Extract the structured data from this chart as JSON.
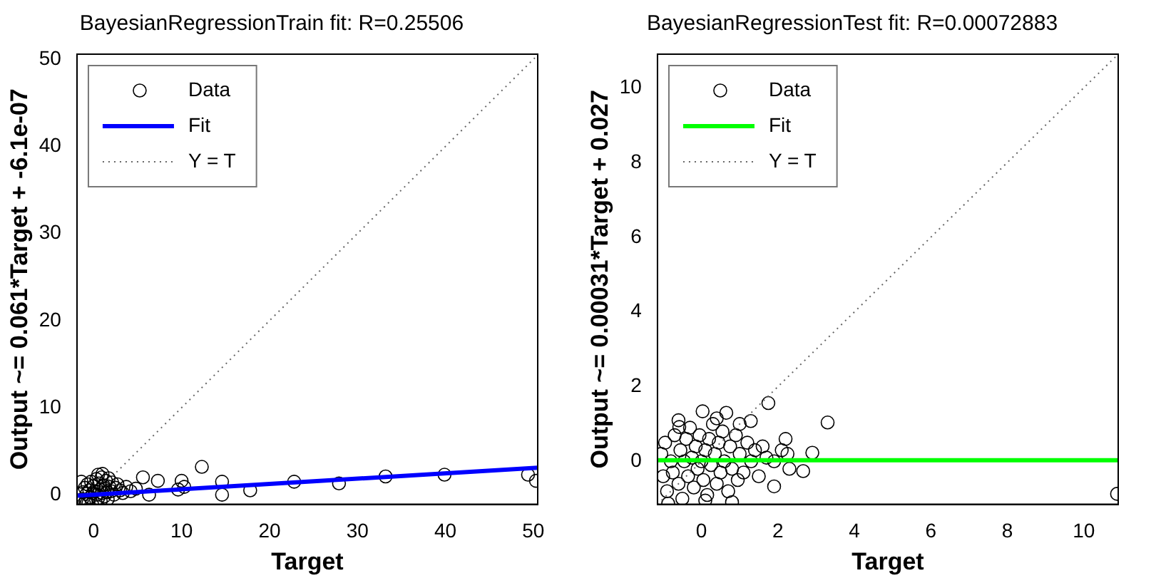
{
  "chart_data": [
    {
      "type": "scatter",
      "title": "BayesianRegressionTrain fit: R=0.25506",
      "xlabel": "Target",
      "ylabel": "Output ~= 0.061*Target + -6.1e-07",
      "xlim": [
        -1.9,
        50.5
      ],
      "ylim": [
        -1.1,
        50.6
      ],
      "xticks": [
        0,
        10,
        20,
        30,
        40,
        50
      ],
      "yticks": [
        0,
        10,
        20,
        30,
        40,
        50
      ],
      "grid": false,
      "legend": "top left",
      "series": [
        {
          "name": "Data",
          "marker": "circle",
          "color": "#000000",
          "x": [
            -1.3,
            -1.2,
            -1.1,
            -1,
            -0.9,
            -0.8,
            -0.7,
            -0.6,
            -0.5,
            -0.4,
            -0.3,
            -0.2,
            -0.1,
            0,
            0.1,
            0.3,
            0.4,
            0.5,
            0.6,
            0.7,
            0.8,
            0.9,
            1,
            1.1,
            1.2,
            1.3,
            1.4,
            1.5,
            1.6,
            1.7,
            1.8,
            2,
            2.1,
            2.3,
            2.5,
            2.7,
            3,
            3.3,
            3.7,
            4.2,
            4.8,
            -0.8,
            0.5,
            -1.4,
            1,
            5.6,
            6.3,
            7.3,
            10,
            10.3,
            9.6,
            12.3,
            14.6,
            14.6,
            17.8,
            22.8,
            27.9,
            33.2,
            39.9,
            49.4,
            50.3
          ],
          "values": [
            -0.5,
            0.3,
            -1,
            0.8,
            -0.8,
            0.1,
            1.2,
            -1,
            0.5,
            -0.3,
            1.5,
            -1,
            0.2,
            1,
            0.4,
            1.8,
            0,
            -0.4,
            1.3,
            0.6,
            -0.7,
            2,
            0.2,
            1.1,
            -0.2,
            0.7,
            1.6,
            0.3,
            -0.5,
            1.9,
            0.9,
            0.4,
            1.4,
            0,
            0.8,
            1.2,
            0.5,
            0.2,
            0.9,
            0.4,
            0.7,
            -1,
            2.3,
            1.5,
            2.4,
            2,
            0,
            1.6,
            1.6,
            0.9,
            0.6,
            3.2,
            1.5,
            0,
            0.5,
            1.5,
            1.3,
            2.1,
            2.3,
            2.3,
            1.6
          ]
        },
        {
          "name": "Fit",
          "type": "line",
          "marker": "none",
          "line_style": "solid",
          "color": "#0000ff",
          "x": [
            -1.9,
            50.5
          ],
          "values": [
            -0.1,
            3.1
          ]
        },
        {
          "name": "Y = T",
          "type": "line",
          "marker": "none",
          "line_style": "dotted",
          "color": "#666666",
          "x": [
            -1.1,
            50.5
          ],
          "values": [
            -1.1,
            50.5
          ]
        }
      ]
    },
    {
      "type": "scatter",
      "title": "BayesianRegressionTest fit: R=0.00072883",
      "xlabel": "Target",
      "ylabel": "Output ~= 0.00031*Target + 0.027",
      "xlim": [
        -1.15,
        10.9
      ],
      "ylim": [
        -1.15,
        10.9
      ],
      "xticks": [
        0,
        2,
        4,
        6,
        8,
        10
      ],
      "yticks": [
        0,
        2,
        4,
        6,
        8,
        10
      ],
      "grid": false,
      "legend": "top left",
      "series": [
        {
          "name": "Data",
          "marker": "circle",
          "color": "#000000",
          "x": [
            -1.05,
            -1,
            -0.95,
            -0.9,
            -0.8,
            -0.75,
            -0.7,
            -0.6,
            -0.55,
            -0.5,
            -0.45,
            -0.4,
            -0.35,
            -0.3,
            -0.25,
            -0.2,
            -0.15,
            -0.1,
            -0.05,
            0,
            0.05,
            0.1,
            0.15,
            0.2,
            0.25,
            0.3,
            0.35,
            0.4,
            0.45,
            0.5,
            0.55,
            0.6,
            0.7,
            0.75,
            0.8,
            0.9,
            0.95,
            1,
            1.1,
            1.2,
            1.3,
            1.4,
            1.5,
            1.6,
            1.7,
            0.1,
            -0.6,
            0.4,
            1.9,
            2.1,
            2.3,
            2.25,
            1.75,
            3.3,
            2.9,
            2.2,
            2.66,
            1.9,
            10.87,
            -0.87,
            0.8,
            0.03,
            0.65,
            -0.58,
            1,
            1.29
          ],
          "values": [
            0.2,
            -0.4,
            0.5,
            -0.8,
            0,
            -0.3,
            0.7,
            -0.6,
            0.3,
            -1,
            0,
            0.6,
            -0.4,
            0.9,
            0.1,
            -0.7,
            0.4,
            -0.2,
            0.7,
            0,
            -0.5,
            0.3,
            -0.9,
            0.6,
            -0.1,
            1,
            0.2,
            -0.6,
            0.5,
            -0.3,
            0.8,
            0,
            -0.8,
            0.4,
            -0.2,
            0.7,
            -0.5,
            0.2,
            -0.3,
            0.5,
            0,
            0.3,
            -0.4,
            0.4,
            0.1,
            -1.05,
            1.1,
            1.15,
            0,
            0.3,
            -0.2,
            0.2,
            1.56,
            1.04,
            0.23,
            0.6,
            -0.26,
            -0.67,
            -0.87,
            -1.13,
            -1.09,
            1.34,
            1.3,
            0.92,
            1,
            1.08
          ]
        },
        {
          "name": "Fit",
          "type": "line",
          "marker": "none",
          "line_style": "solid",
          "color": "#00ff00",
          "x": [
            -1.15,
            10.9
          ],
          "values": [
            0.03,
            0.03
          ]
        },
        {
          "name": "Y = T",
          "type": "line",
          "marker": "none",
          "line_style": "dotted",
          "color": "#666666",
          "x": [
            -1.15,
            10.9
          ],
          "values": [
            -1.15,
            10.9
          ]
        }
      ]
    }
  ]
}
